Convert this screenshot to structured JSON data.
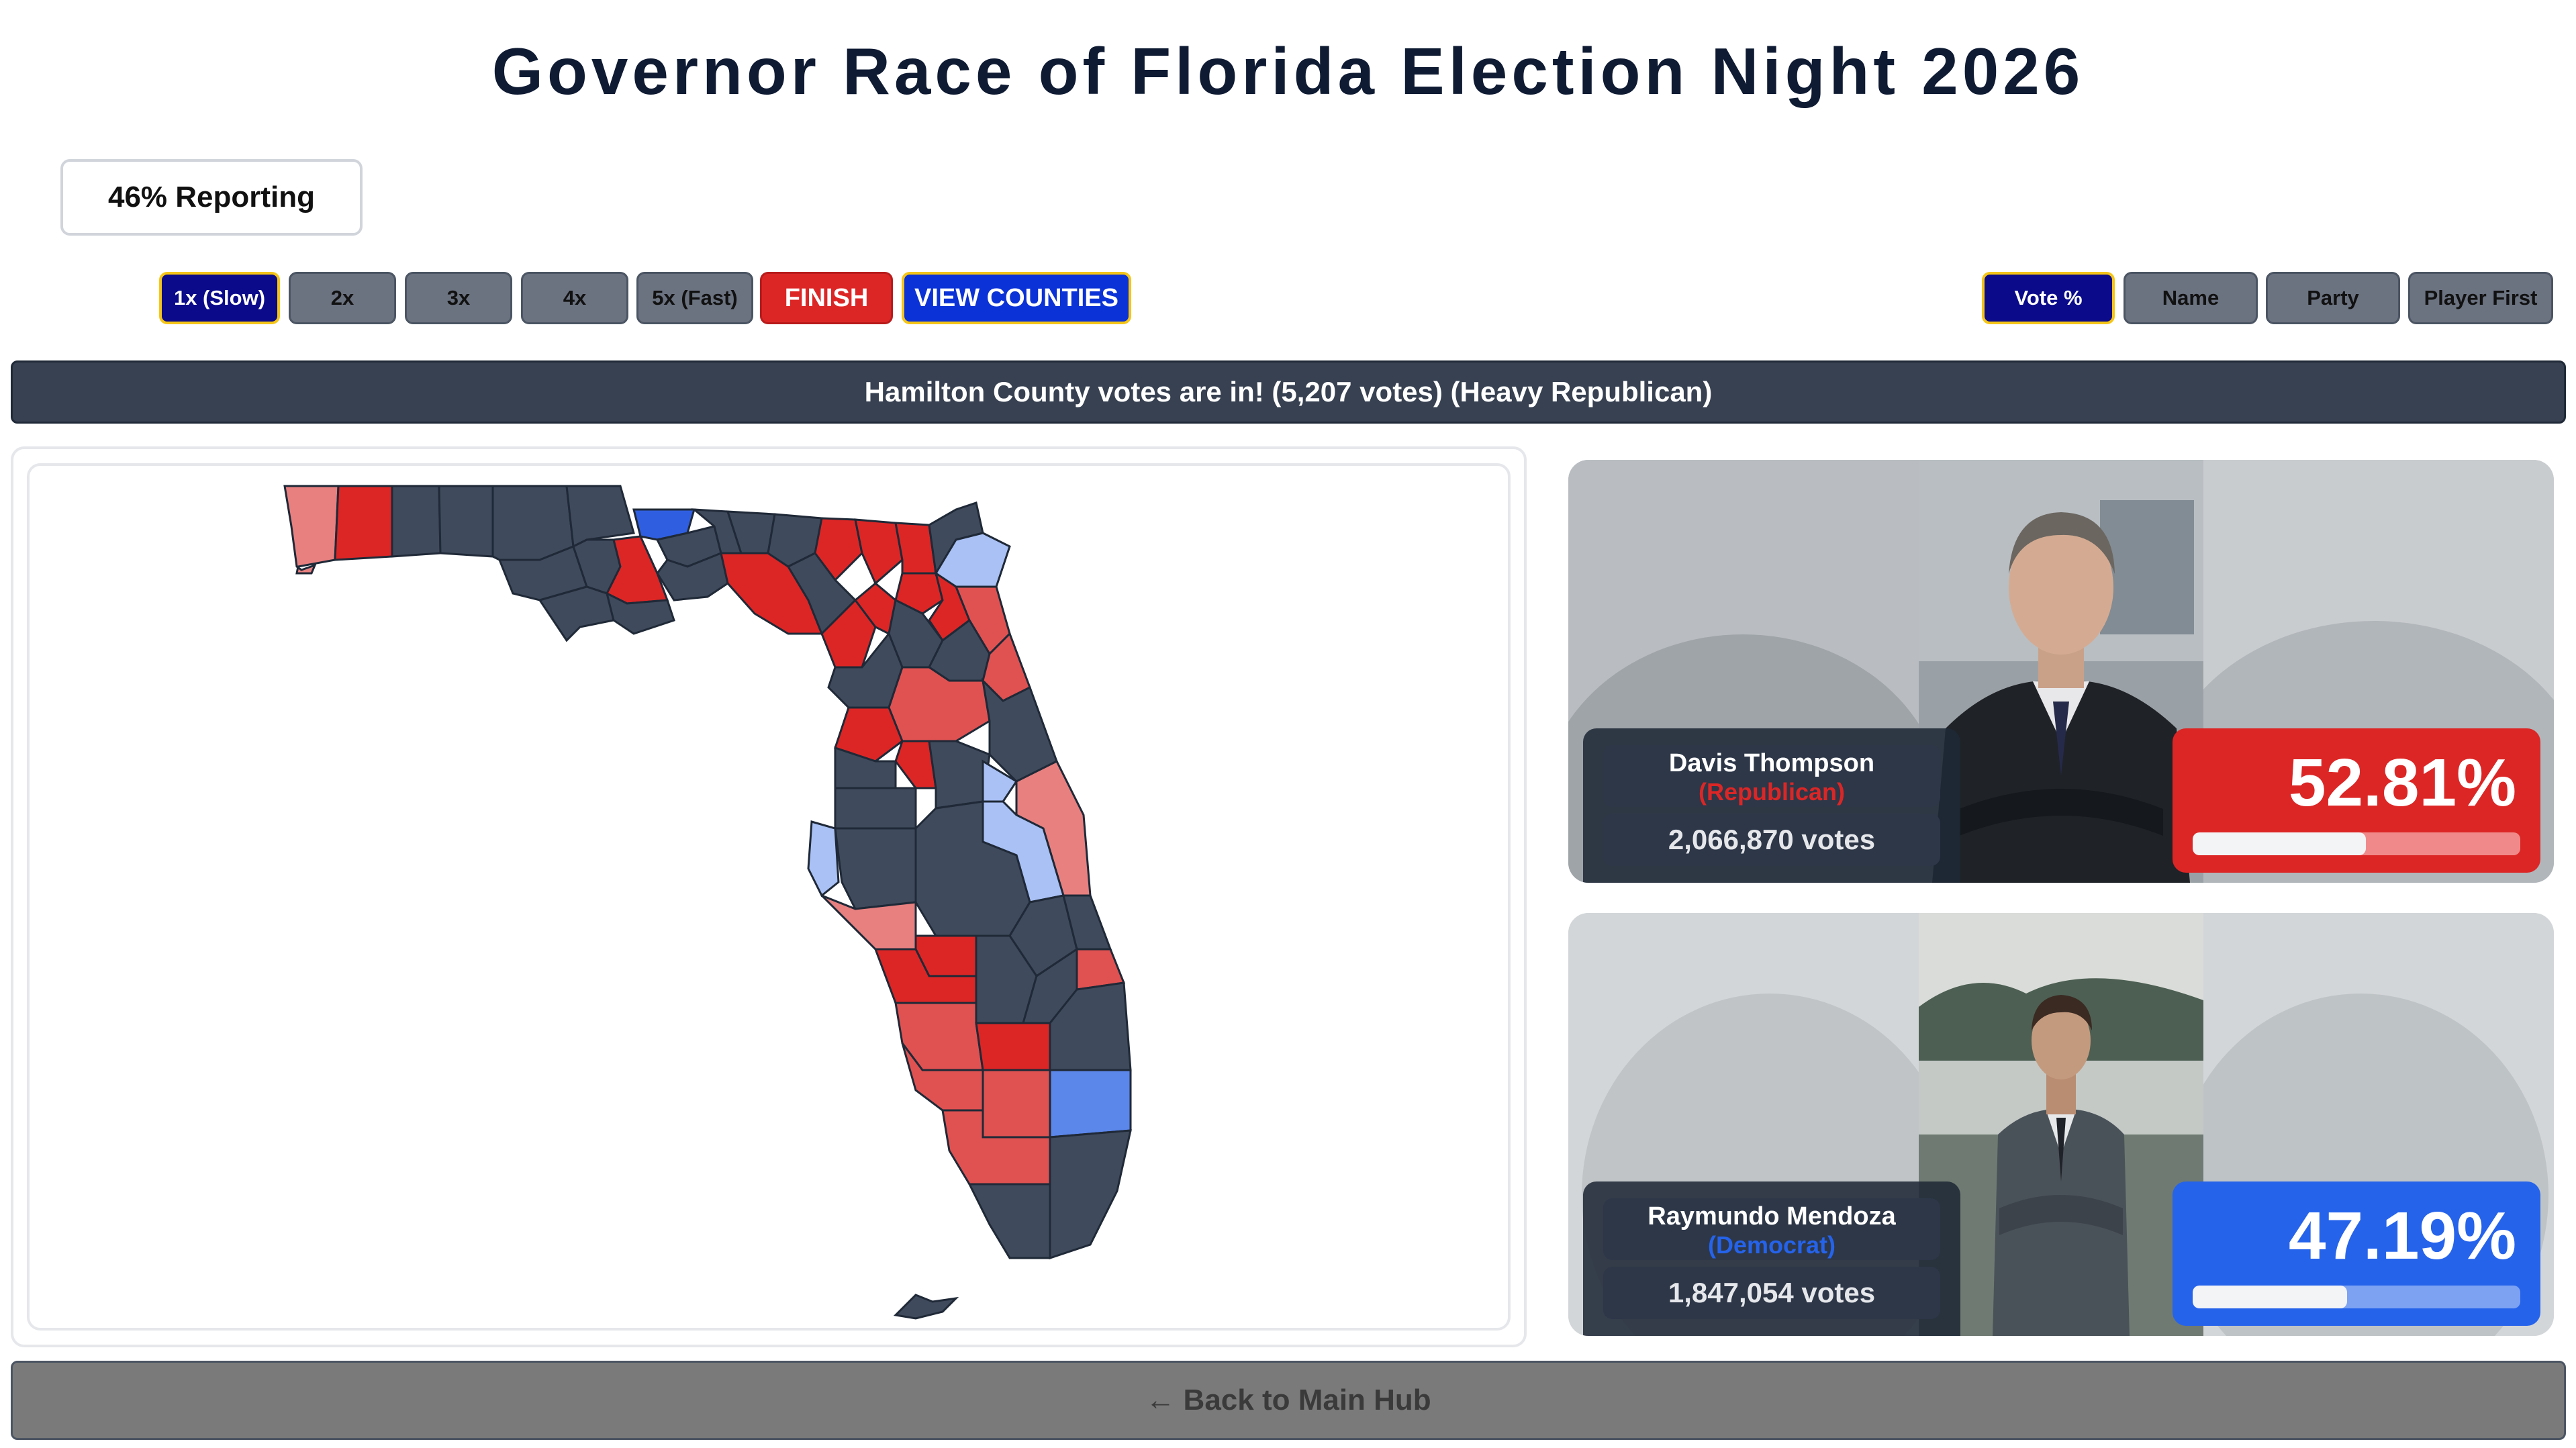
{
  "title": "Governor Race of Florida Election Night 2026",
  "reporting": "46% Reporting",
  "speed_buttons": [
    "1x (Slow)",
    "2x",
    "3x",
    "4x",
    "5x (Fast)"
  ],
  "active_speed": "1x (Slow)",
  "finish_label": "FINISH",
  "view_counties_label": "VIEW COUNTIES",
  "sort_buttons": [
    "Vote %",
    "Name",
    "Party",
    "Player First"
  ],
  "active_sort": "Vote %",
  "banner": "Hamilton County votes are in! (5,207 votes) (Heavy Republican)",
  "candidates": [
    {
      "name": "Davis Thompson",
      "party": "(Republican)",
      "votes": "2,066,870 votes",
      "percent": "52.81%",
      "percent_value": 0.5281,
      "color": "#dc2626"
    },
    {
      "name": "Raymundo Mendoza",
      "party": "(Democrat)",
      "votes": "1,847,054 votes",
      "percent": "47.19%",
      "percent_value": 0.4719,
      "color": "#2563eb"
    }
  ],
  "map_colors": {
    "uncounted": "#3f4a5c",
    "strong_rep": "#dc2626",
    "lean_rep": "#e05252",
    "tilt_rep": "#e88080",
    "strong_dem": "#2f5fe0",
    "lean_dem": "#5b86ea",
    "tilt_dem": "#a9c1f5"
  },
  "back_label": "← Back to Main Hub"
}
